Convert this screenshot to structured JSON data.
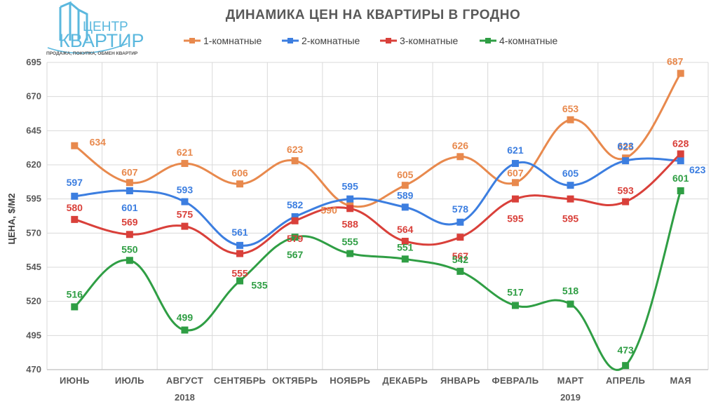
{
  "logo": {
    "top": "ЦЕНТР",
    "main": "КВАРТИР",
    "tagline": "ПРОДАЖА, ПОКУПКА, ОБМЕН КВАРТИР"
  },
  "colors": {
    "s1": "#e8894d",
    "s2": "#3c7ee0",
    "s3": "#d9403a",
    "s4": "#2f9e44",
    "grid": "#d9d9d9",
    "axis": "#bfbfbf"
  },
  "chart_data": {
    "type": "line",
    "title": "ДИНАМИКА ЦЕН НА КВАРТИРЫ В ГРОДНО",
    "xlabel": "",
    "ylabel": "ЦЕНА, $/М2",
    "ylim": [
      470,
      695
    ],
    "yticks": [
      "470",
      "495",
      "520",
      "545",
      "570",
      "595",
      "620",
      "645",
      "670",
      "695"
    ],
    "categories": [
      "ИЮНЬ",
      "ИЮЛЬ",
      "АВГУСТ",
      "СЕНТЯБРЬ",
      "ОКТЯБРЬ",
      "НОЯБРЬ",
      "ДЕКАБРЬ",
      "ЯНВАРЬ",
      "ФЕВРАЛЬ",
      "МАРТ",
      "АПРЕЛЬ",
      "МАЯ"
    ],
    "years": [
      {
        "label": "2018",
        "from": 0,
        "to": 4
      },
      {
        "label": "2019",
        "from": 7,
        "to": 11
      }
    ],
    "legend_position": "top",
    "series": [
      {
        "name": "1-комнатные",
        "color_key": "s1",
        "values": [
          634,
          607,
          621,
          606,
          623,
          590,
          605,
          626,
          607,
          653,
          625,
          687
        ]
      },
      {
        "name": "2-комнатные",
        "color_key": "s2",
        "values": [
          597,
          601,
          593,
          561,
          582,
          595,
          589,
          578,
          621,
          605,
          623,
          623
        ]
      },
      {
        "name": "3-комнатные",
        "color_key": "s3",
        "values": [
          580,
          569,
          575,
          555,
          579,
          588,
          564,
          567,
          595,
          595,
          593,
          628
        ]
      },
      {
        "name": "4-комнатные",
        "color_key": "s4",
        "values": [
          516,
          550,
          499,
          535,
          567,
          555,
          551,
          542,
          517,
          518,
          473,
          601
        ]
      }
    ]
  }
}
